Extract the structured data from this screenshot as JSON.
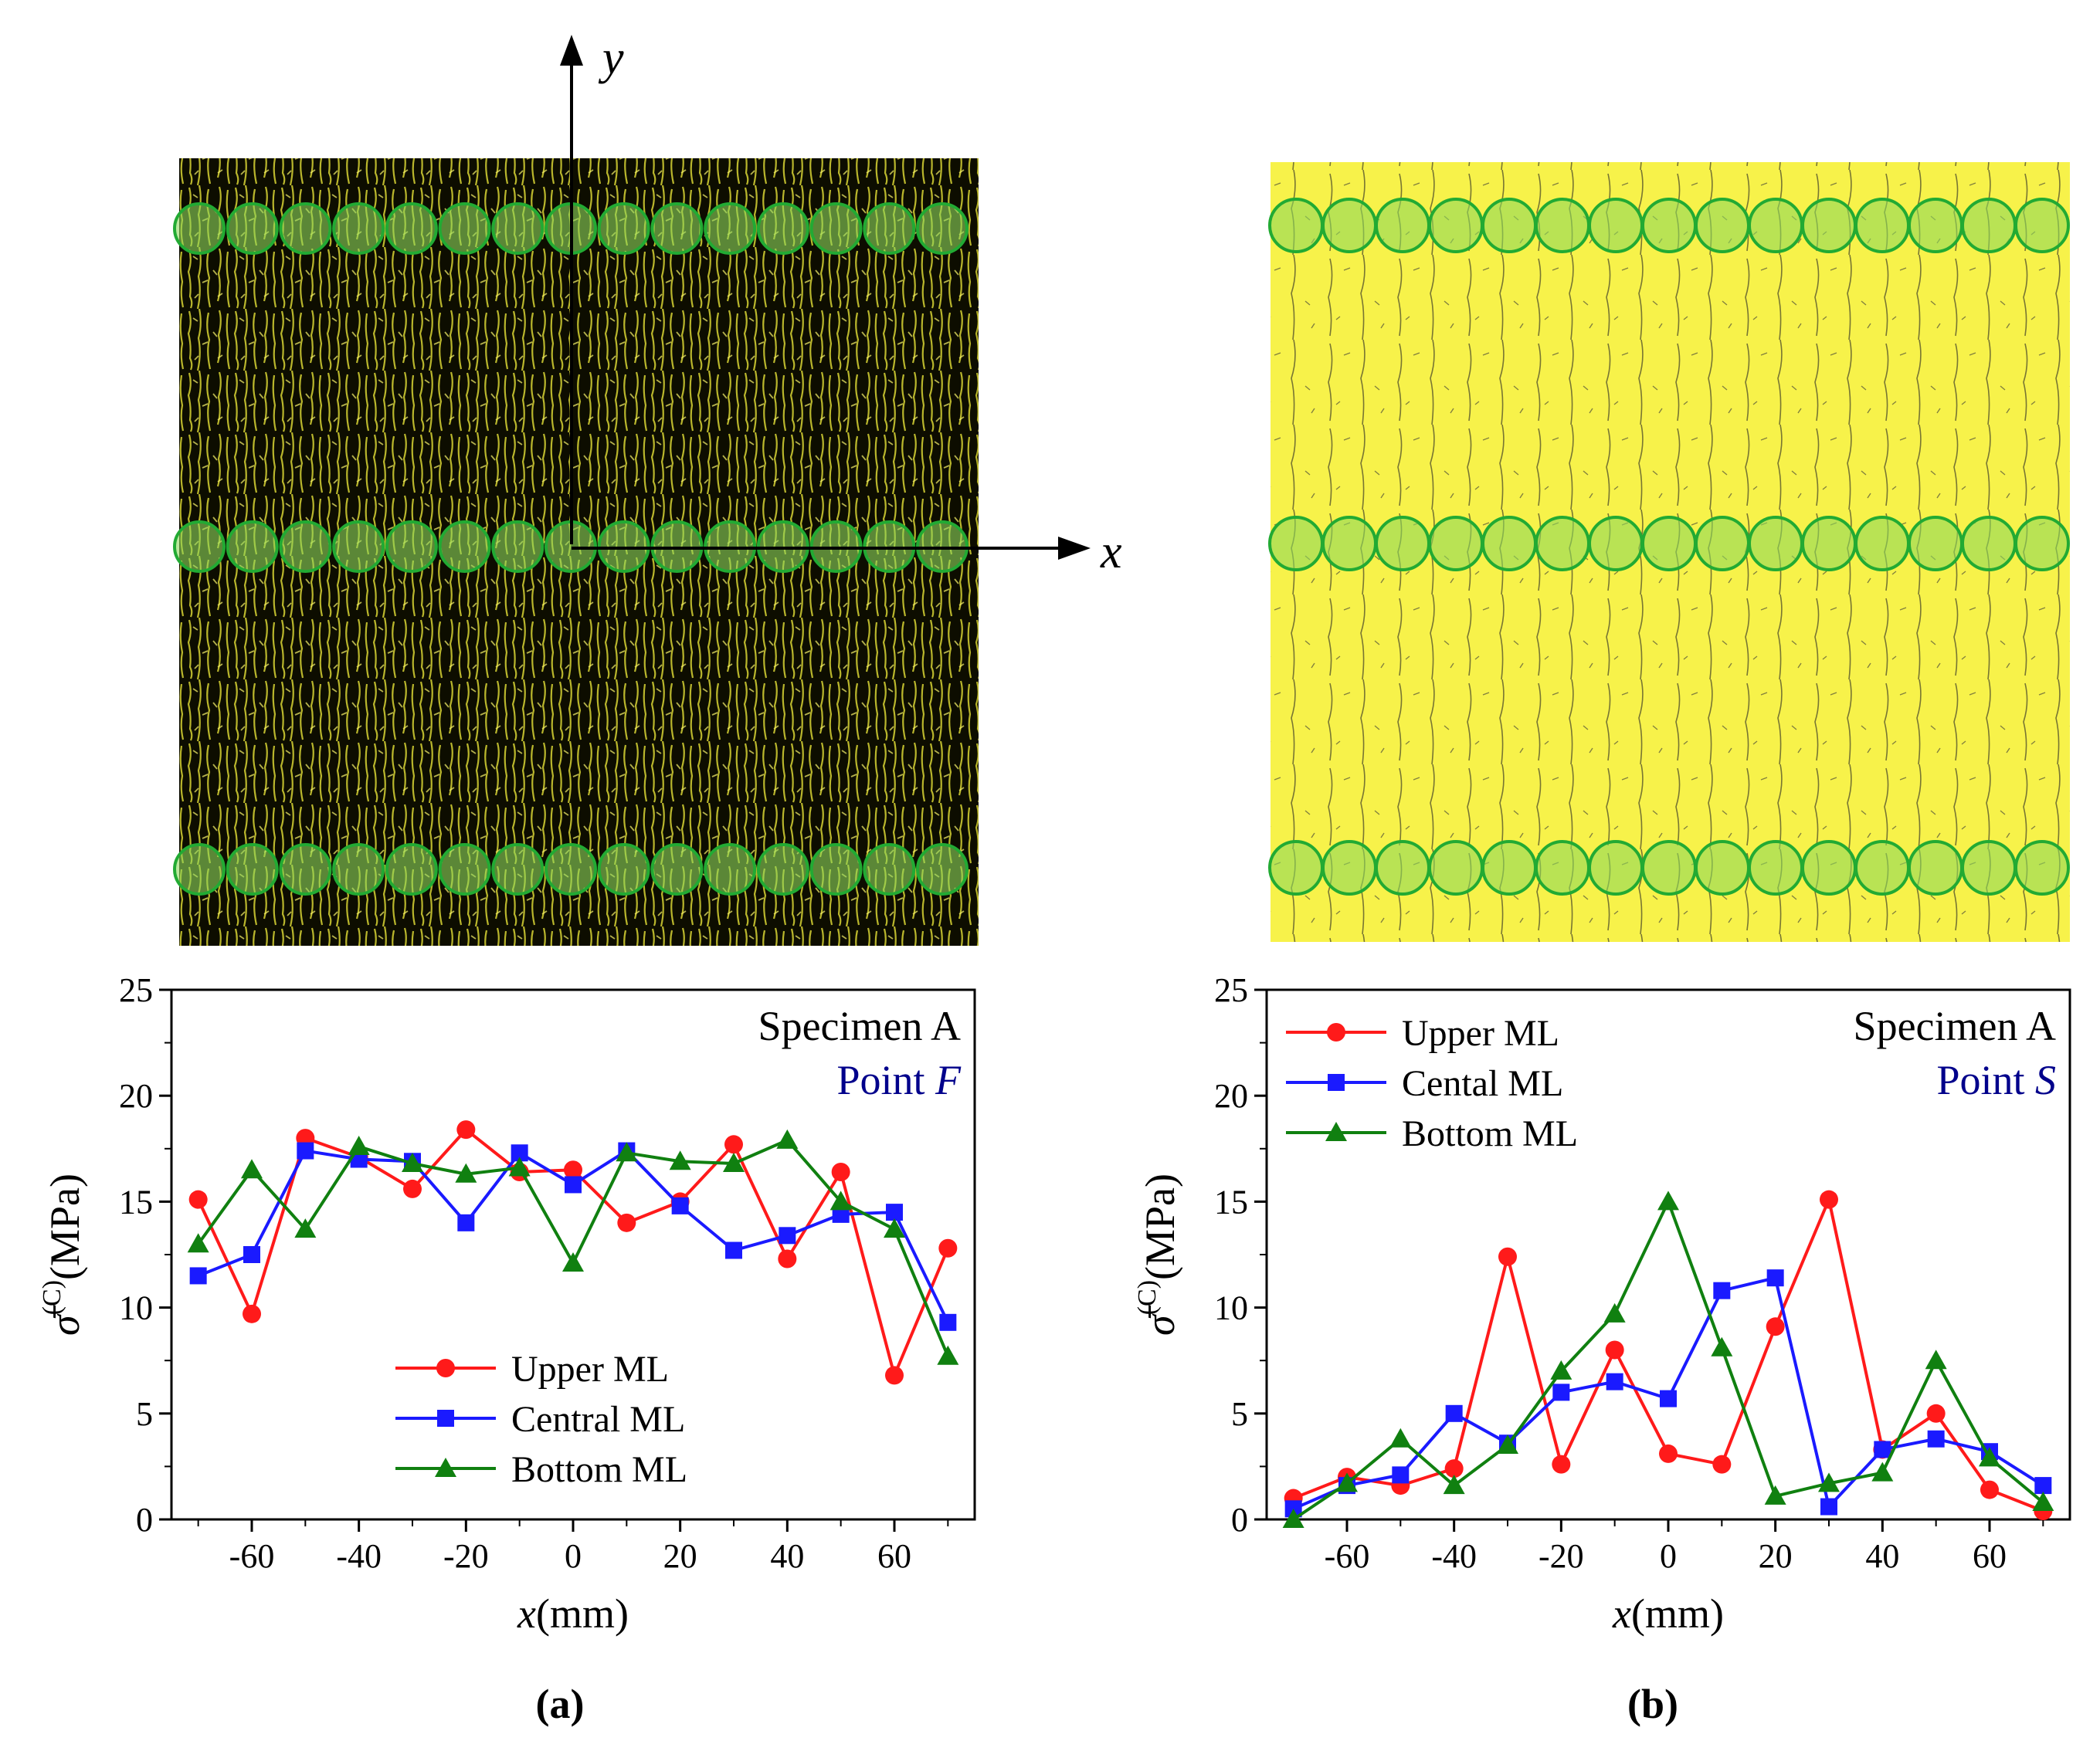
{
  "images": [
    {
      "name": "crack-map-point-f",
      "tone": "dense",
      "axis_x": "x",
      "axis_y": "y"
    },
    {
      "name": "crack-map-point-s",
      "tone": "sparse"
    }
  ],
  "panel_labels": [
    "(a)",
    "(b)"
  ],
  "colors": {
    "upper": "#ff1a1a",
    "central": "#1a1aff",
    "bottom": "#108010",
    "blue_text": "#00008b",
    "circle_fill": "#8fd85c",
    "circle_stroke": "#22aa33",
    "yellow": "#ffff66"
  },
  "chart_data": [
    {
      "type": "line",
      "title": "Specimen A",
      "subtitle_prefix": "Point ",
      "subtitle_italic": "F",
      "xlabel_italic": "x",
      "xlabel_unit": "(mm)",
      "ylabel_symbol": "σ̄",
      "ylabel_super": "(C)",
      "ylabel_unit": "(MPa)",
      "xlim": [
        -75,
        75
      ],
      "ylim": [
        0,
        25
      ],
      "xticks": [
        -60,
        -40,
        -20,
        0,
        20,
        40,
        60
      ],
      "yticks": [
        0,
        5,
        10,
        15,
        20,
        25
      ],
      "legend_position": "lower-center",
      "x": [
        -70,
        -60,
        -50,
        -40,
        -30,
        -20,
        -10,
        0,
        10,
        20,
        30,
        40,
        50,
        60,
        70
      ],
      "series": [
        {
          "name": "Upper ML",
          "marker": "circle",
          "color": "#ff1a1a",
          "values": [
            15.1,
            9.7,
            18.0,
            17.1,
            15.6,
            18.4,
            16.4,
            16.5,
            14.0,
            15.0,
            17.7,
            12.3,
            16.4,
            6.8,
            12.8
          ]
        },
        {
          "name": "Central ML",
          "marker": "square",
          "color": "#1a1aff",
          "values": [
            11.5,
            12.5,
            17.4,
            17.0,
            16.9,
            14.0,
            17.3,
            15.8,
            17.4,
            14.8,
            12.7,
            13.4,
            14.4,
            14.5,
            9.3
          ]
        },
        {
          "name": "Bottom ML",
          "marker": "triangle",
          "color": "#108010",
          "values": [
            13.0,
            16.5,
            13.7,
            17.6,
            16.8,
            16.3,
            16.6,
            12.1,
            17.3,
            16.9,
            16.8,
            17.9,
            15.0,
            13.7,
            7.7
          ]
        }
      ]
    },
    {
      "type": "line",
      "title": "Specimen A",
      "subtitle_prefix": "Point ",
      "subtitle_italic": "S",
      "xlabel_italic": "x",
      "xlabel_unit": "(mm)",
      "ylabel_symbol": "σ̄",
      "ylabel_super": "(C)",
      "ylabel_unit": "(MPa)",
      "xlim": [
        -75,
        75
      ],
      "ylim": [
        0,
        25
      ],
      "xticks": [
        -60,
        -40,
        -20,
        0,
        20,
        40,
        60
      ],
      "yticks": [
        0,
        5,
        10,
        15,
        20,
        25
      ],
      "legend_position": "top-left",
      "x": [
        -70,
        -60,
        -50,
        -40,
        -30,
        -20,
        -10,
        0,
        10,
        20,
        30,
        40,
        50,
        60,
        70
      ],
      "series": [
        {
          "name": "Upper ML",
          "marker": "circle",
          "color": "#ff1a1a",
          "values": [
            1.0,
            2.0,
            1.6,
            2.4,
            12.4,
            2.6,
            8.0,
            3.1,
            2.6,
            9.1,
            15.1,
            3.3,
            5.0,
            1.4,
            0.4
          ]
        },
        {
          "name": "Cental ML",
          "marker": "square",
          "color": "#1a1aff",
          "values": [
            0.5,
            1.6,
            2.1,
            5.0,
            3.6,
            6.0,
            6.5,
            5.7,
            10.8,
            11.4,
            0.6,
            3.3,
            3.8,
            3.2,
            1.6
          ]
        },
        {
          "name": "Bottom ML",
          "marker": "triangle",
          "color": "#108010",
          "values": [
            0.0,
            1.7,
            3.8,
            1.6,
            3.5,
            7.0,
            9.7,
            15.0,
            8.1,
            1.1,
            1.7,
            2.2,
            7.5,
            2.9,
            0.8
          ]
        }
      ]
    }
  ]
}
